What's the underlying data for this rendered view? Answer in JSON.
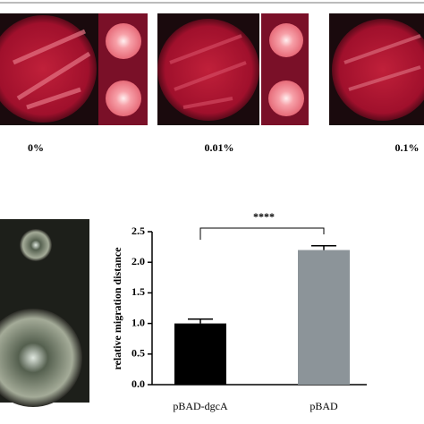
{
  "panels": {
    "concentrations": [
      "0%",
      "0.01%",
      "0.1%"
    ]
  },
  "chart_data": {
    "type": "bar",
    "ylabel": "relative migration distance",
    "categories": [
      "pBAD-dgcA",
      "pBAD"
    ],
    "values": [
      1.0,
      2.2
    ],
    "errors": [
      0.07,
      0.07
    ],
    "colors": [
      "#000000",
      "#8c9499"
    ],
    "ylim": [
      0,
      2.5
    ],
    "yticks": [
      {
        "value": 0,
        "label": "0.0"
      },
      {
        "value": 0.5,
        "label": "0.5"
      },
      {
        "value": 1,
        "label": "1.0"
      },
      {
        "value": 1.5,
        "label": "1.5"
      },
      {
        "value": 2,
        "label": "2.0"
      },
      {
        "value": 2.5,
        "label": "2.5"
      }
    ],
    "annotation": "****"
  }
}
